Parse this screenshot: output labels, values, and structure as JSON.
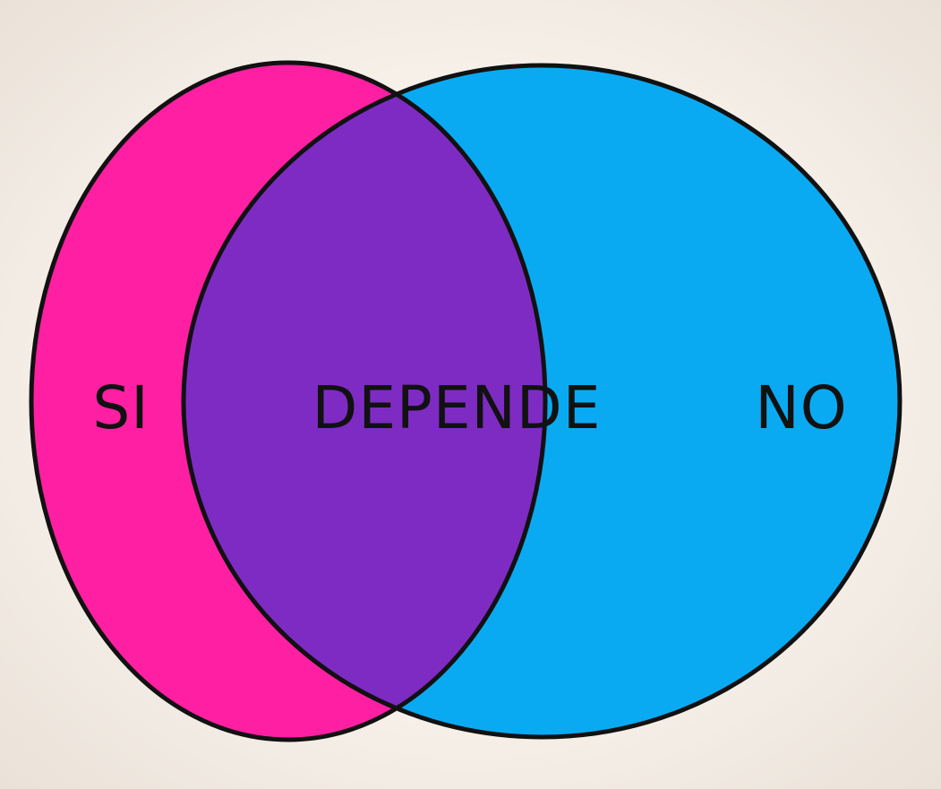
{
  "diagram": {
    "type": "venn",
    "sets": [
      {
        "label": "SI",
        "color": "#ff1fa3"
      },
      {
        "label": "NO",
        "color": "#0aaaf2"
      }
    ],
    "intersection": {
      "label": "DEPENDE",
      "color": "#7e2bc4"
    },
    "outline_color": "#111111",
    "background_color": "#f7f1ea"
  }
}
